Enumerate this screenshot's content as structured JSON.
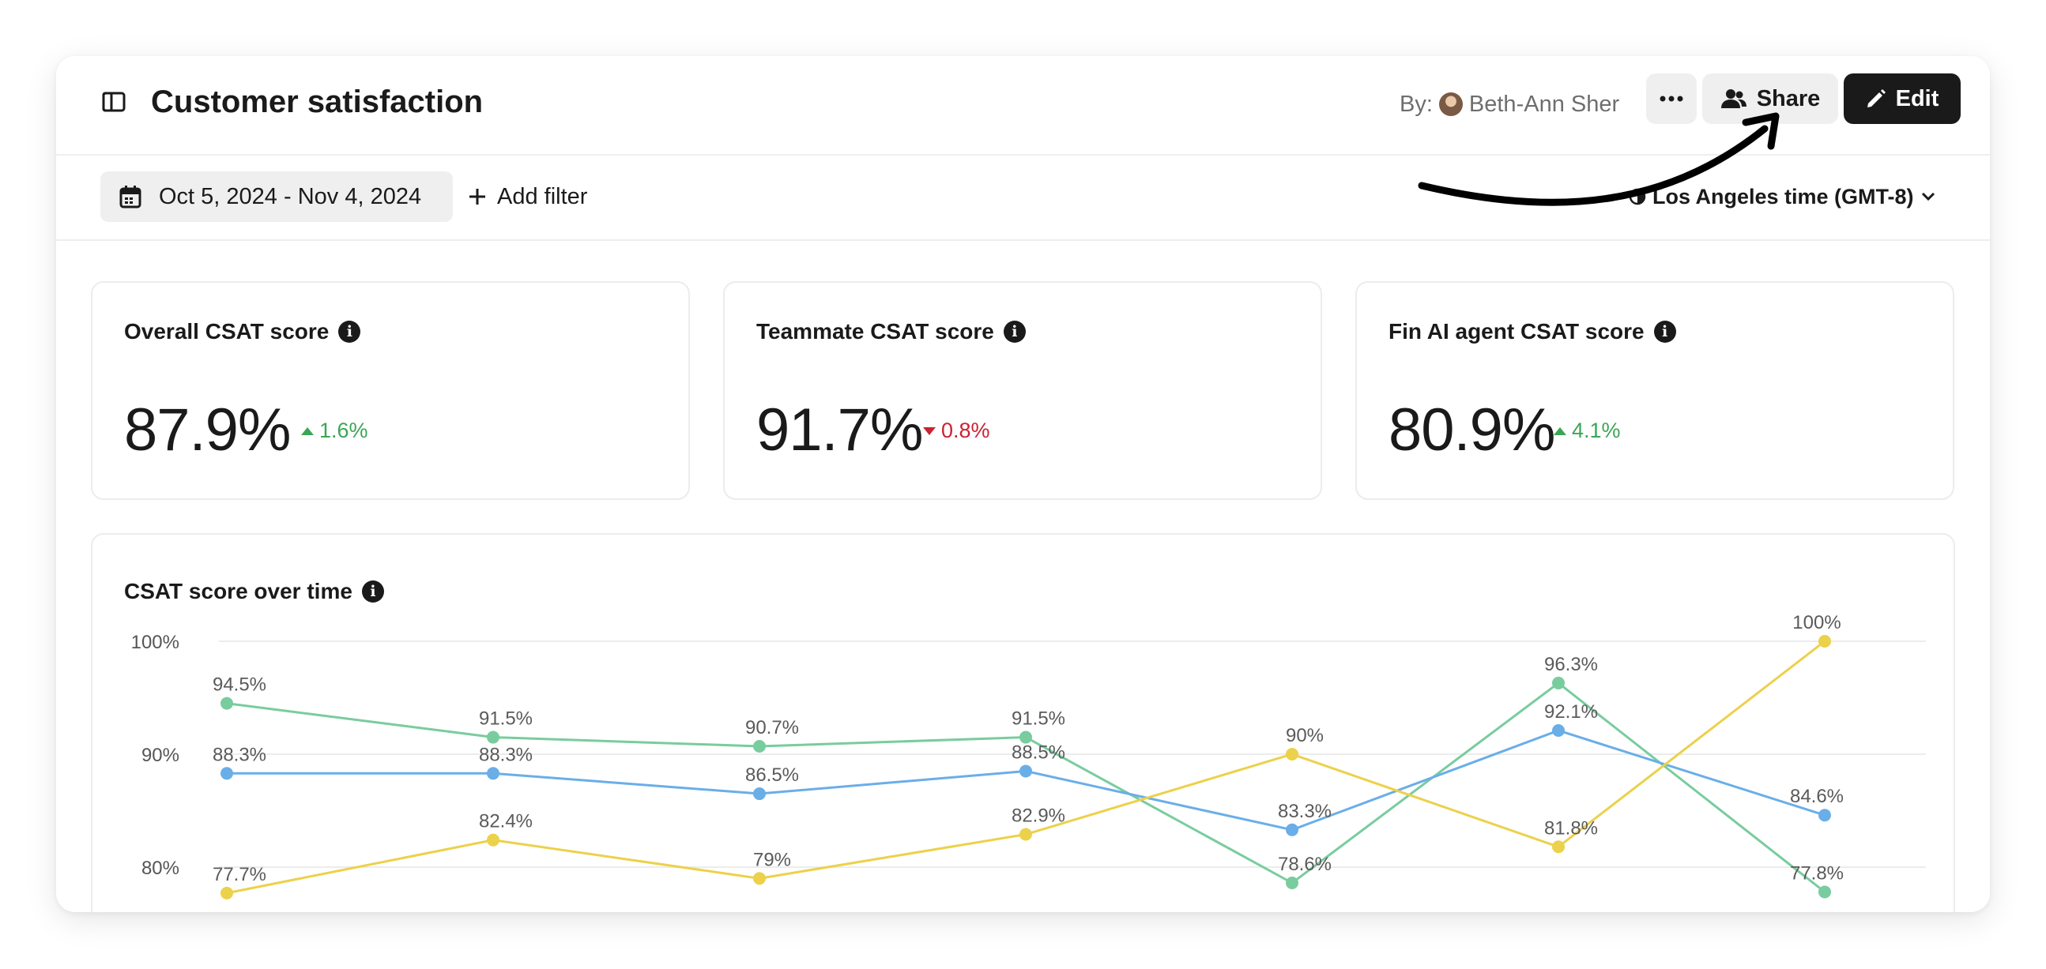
{
  "header": {
    "title": "Customer satisfaction",
    "by_label": "By:",
    "author": "Beth-Ann Sher",
    "more_label": "···",
    "share_label": "Share",
    "edit_label": "Edit"
  },
  "filters": {
    "date_range": "Oct 5, 2024 - Nov 4, 2024",
    "add_filter": "Add filter",
    "timezone": "Los Angeles time (GMT-8)"
  },
  "metrics": [
    {
      "title": "Overall CSAT score",
      "value": "87.9%",
      "delta": "1.6%",
      "direction": "up"
    },
    {
      "title": "Teammate CSAT score",
      "value": "91.7%",
      "delta": "0.8%",
      "direction": "down"
    },
    {
      "title": "Fin AI agent CSAT score",
      "value": "80.9%",
      "delta": "4.1%",
      "direction": "up"
    }
  ],
  "colors": {
    "green": "#79cc9e",
    "blue": "#6aaee8",
    "yellow": "#ecd14a",
    "up": "#3aa655",
    "down": "#cc2233"
  },
  "chart_data": {
    "type": "line",
    "title": "CSAT score over time",
    "ylim": [
      78,
      100
    ],
    "yticks": [
      {
        "value": 100,
        "label": "100%"
      },
      {
        "value": 90,
        "label": "90%"
      },
      {
        "value": 80,
        "label": "80%"
      }
    ],
    "grid": true,
    "series": [
      {
        "color": "#79cc9e",
        "values": [
          94.5,
          91.5,
          90.7,
          91.5,
          78.6,
          96.3,
          77.8
        ],
        "labels": [
          "94.5%",
          "91.5%",
          "90.7%",
          "91.5%",
          "78.6%",
          "96.3%",
          "77.8%"
        ]
      },
      {
        "color": "#6aaee8",
        "values": [
          88.3,
          88.3,
          86.5,
          88.5,
          83.3,
          92.1,
          84.6
        ],
        "labels": [
          "88.3%",
          "88.3%",
          "86.5%",
          "88.5%",
          "83.3%",
          "92.1%",
          "84.6%"
        ]
      },
      {
        "color": "#ecd14a",
        "values": [
          77.7,
          82.4,
          79,
          82.9,
          90,
          81.8,
          100
        ],
        "labels": [
          "77.7%",
          "82.4%",
          "79%",
          "82.9%",
          "90%",
          "81.8%",
          "100%"
        ]
      }
    ]
  }
}
